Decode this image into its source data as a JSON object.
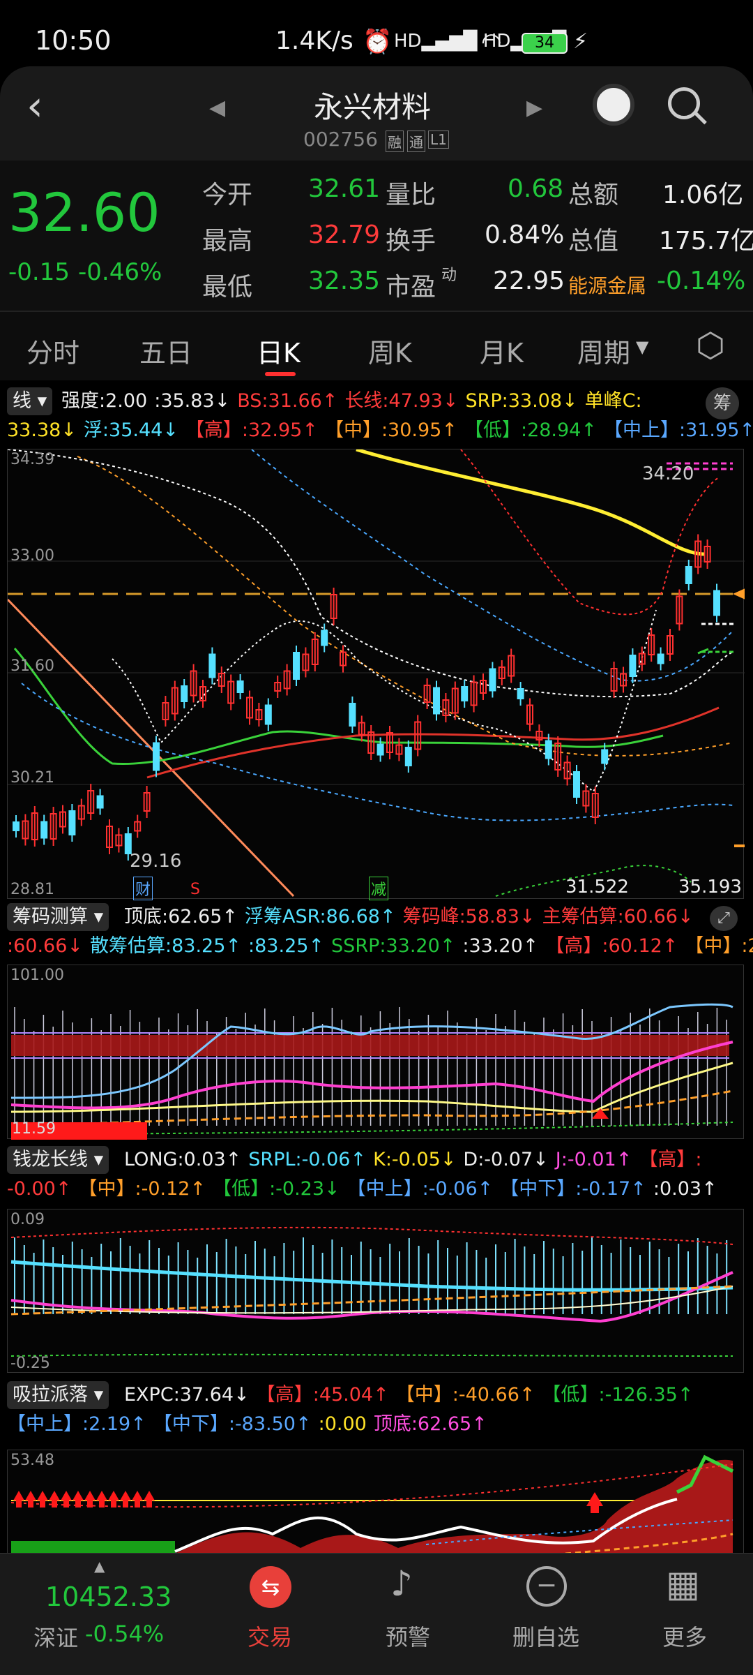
{
  "status": {
    "time": "10:50",
    "net": "1.4K/s",
    "battery": "34"
  },
  "header": {
    "title": "永兴材料",
    "code": "002756",
    "tags": [
      "融",
      "通",
      "L1"
    ]
  },
  "quote": {
    "price": "32.60",
    "change": "-0.15",
    "pct": "-0.46%",
    "open_label": "今开",
    "open": "32.61",
    "high_label": "最高",
    "high": "32.79",
    "low_label": "最低",
    "low": "32.35",
    "ratio_label": "量比",
    "ratio": "0.68",
    "turn_label": "换手",
    "turn": "0.84%",
    "pe_label": "市盈",
    "pe_sup": "动",
    "pe": "22.95",
    "amount_label": "总额",
    "amount": "1.06亿",
    "mcap_label": "总值",
    "mcap": "175.7亿",
    "sector_label": "能源金属",
    "sector": "-0.14%"
  },
  "tabs": [
    "分时",
    "五日",
    "日K",
    "周K",
    "月K",
    "周期"
  ],
  "ind1": {
    "selector": "线",
    "l1": [
      [
        "强度:2.00",
        "wht"
      ],
      [
        ":35.83↓",
        "wht"
      ],
      [
        "BS:31.66↑",
        "red"
      ],
      [
        "长线:47.93↓",
        "red"
      ],
      [
        "SRP:33.08↓",
        "yel"
      ],
      [
        "单峰C:",
        "yel"
      ]
    ],
    "l2": [
      [
        "33.38↓",
        "yel"
      ],
      [
        "浮:35.44↓",
        "cyan"
      ],
      [
        "【高】:32.95↑",
        "red"
      ],
      [
        "【中】:30.95↑",
        "org"
      ],
      [
        "【低】:28.94↑",
        "grn"
      ],
      [
        "【中上】:31.95↑",
        "blu"
      ]
    ],
    "chip": "筹"
  },
  "chart": {
    "ymax": "34.39",
    "y1": "33.00",
    "y2": "31.60",
    "y3": "30.21",
    "ymin": "28.81",
    "hi": "34.20",
    "lo": "29.16",
    "b1": "31.522",
    "b2": "35.193",
    "m1": "财",
    "m2": "S",
    "m3": "减"
  },
  "ind2": {
    "selector": "筹码测算",
    "l1": [
      [
        "顶底:62.65↑",
        "wht"
      ],
      [
        "浮筹ASR:86.68↑",
        "cyan"
      ],
      [
        "筹码峰:58.83↓",
        "red"
      ],
      [
        "主筹估算:60.66↓",
        "red"
      ]
    ],
    "l2": [
      [
        ":60.66↓",
        "red"
      ],
      [
        "散筹估算:83.25↑",
        "cyan"
      ],
      [
        ":83.25↑",
        "cyan"
      ],
      [
        "SSRP:33.20↑",
        "grn"
      ],
      [
        ":33.20↑",
        "wht"
      ],
      [
        "【高】:60.12↑",
        "red"
      ],
      [
        "【中】:2",
        "org"
      ]
    ],
    "ymax": "101.00",
    "ymin": "11.59"
  },
  "ind3": {
    "selector": "钱龙长线",
    "l1": [
      [
        "LONG:0.03↑",
        "wht"
      ],
      [
        "SRPL:-0.06↑",
        "cyan"
      ],
      [
        "K:-0.05↓",
        "yel"
      ],
      [
        "D:-0.07↓",
        "wht"
      ],
      [
        "J:-0.01↑",
        "mag"
      ],
      [
        "【高】:",
        "red"
      ]
    ],
    "l2": [
      [
        "-0.00↑",
        "red"
      ],
      [
        "【中】:-0.12↑",
        "org"
      ],
      [
        "【低】:-0.23↓",
        "grn"
      ],
      [
        "【中上】:-0.06↑",
        "blu"
      ],
      [
        "【中下】:-0.17↑",
        "blu"
      ],
      [
        ":0.03↑",
        "wht"
      ]
    ],
    "ymax": "0.09",
    "ymin": "-0.25"
  },
  "ind4": {
    "selector": "吸拉派落",
    "l1": [
      [
        "EXPC:37.64↓",
        "wht"
      ],
      [
        "【高】:45.04↑",
        "red"
      ],
      [
        "【中】:-40.66↑",
        "org"
      ],
      [
        "【低】:-126.35↑",
        "grn"
      ]
    ],
    "l2": [
      [
        "【中上】:2.19↑",
        "blu"
      ],
      [
        "【中下】:-83.50↑",
        "blu"
      ],
      [
        ":0.00",
        "yel"
      ],
      [
        "顶底:62.65↑",
        "mag"
      ]
    ],
    "ymax": "53.48"
  },
  "bottom": {
    "index_val": "10452.33",
    "index_name": "深证",
    "index_pct": "-0.54%",
    "nav": [
      "交易",
      "预警",
      "删自选",
      "更多"
    ]
  }
}
